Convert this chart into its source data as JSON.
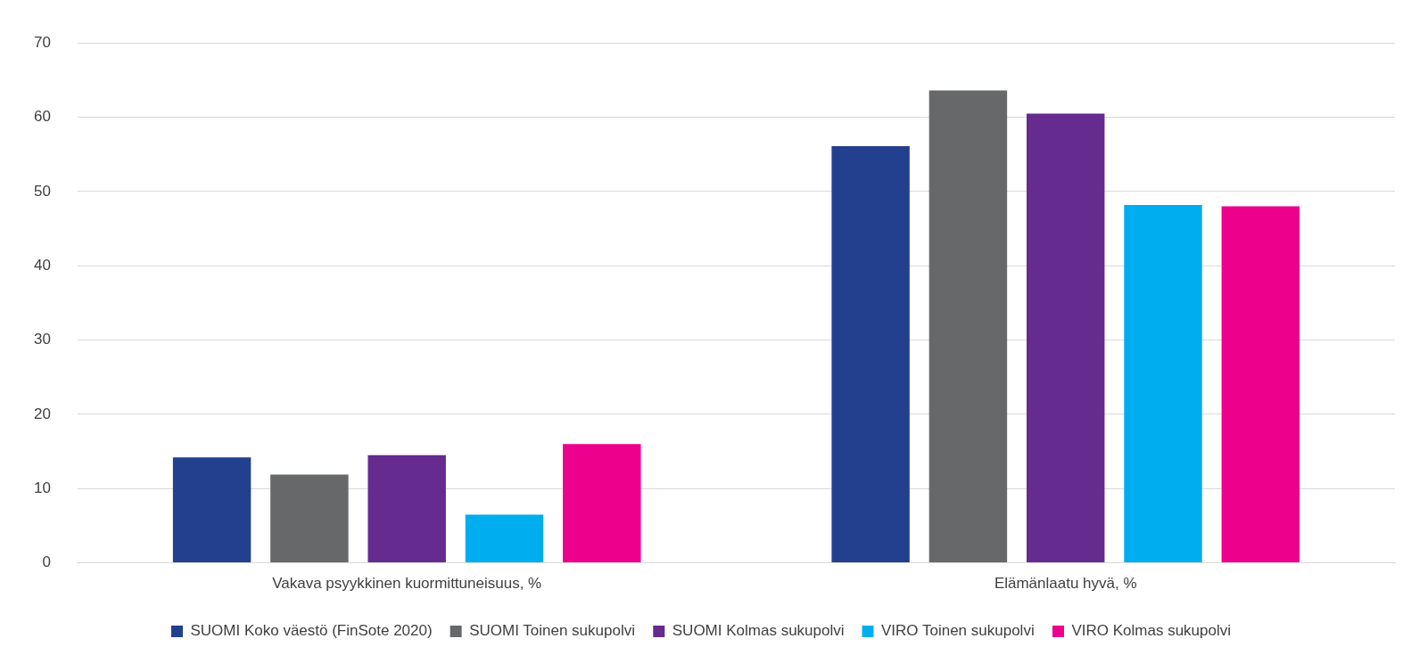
{
  "chart_data": {
    "type": "bar",
    "categories": [
      "Vakava psyykkinen kuormittuneisuus, %",
      "Elämänlaatu hyvä, %"
    ],
    "series": [
      {
        "name": "SUOMI Koko väestö (FinSote 2020)",
        "color": "#23408e",
        "values": [
          14.2,
          56.1
        ]
      },
      {
        "name": "SUOMI Toinen sukupolvi",
        "color": "#676869",
        "values": [
          11.9,
          63.6
        ]
      },
      {
        "name": "SUOMI Kolmas sukupolvi",
        "color": "#652b8f",
        "values": [
          14.5,
          60.5
        ]
      },
      {
        "name": "VIRO Toinen sukupolvi",
        "color": "#00adee",
        "values": [
          6.5,
          48.2
        ]
      },
      {
        "name": "VIRO Kolmas sukupolvi",
        "color": "#ec008c",
        "values": [
          16.0,
          48.0
        ]
      }
    ],
    "ylim": [
      0,
      70
    ],
    "yticks": [
      0,
      10,
      20,
      30,
      40,
      50,
      60,
      70
    ],
    "grid": "y",
    "legend": "bottom"
  }
}
